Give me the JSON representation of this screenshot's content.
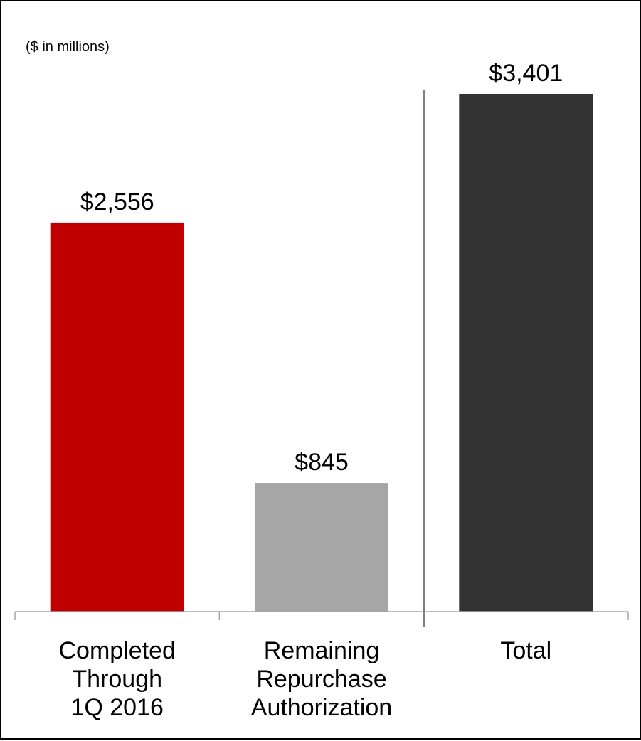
{
  "chart_data": {
    "type": "bar",
    "title": "",
    "note": "($ in millions)",
    "xlabel": "",
    "ylabel": "",
    "categories": [
      [
        "Completed",
        "Through",
        "1Q 2016"
      ],
      [
        "Remaining",
        "Repurchase",
        "Authorization"
      ],
      [
        "Total"
      ]
    ],
    "values": [
      2556,
      845,
      3401
    ],
    "value_labels": [
      "$2,556",
      "$845",
      "$3,401"
    ],
    "colors": [
      "#c00000",
      "#a6a6a6",
      "#333333"
    ],
    "ylim": [
      0,
      3401
    ],
    "grid": false,
    "legend": "none",
    "separator_after_category": 1
  }
}
